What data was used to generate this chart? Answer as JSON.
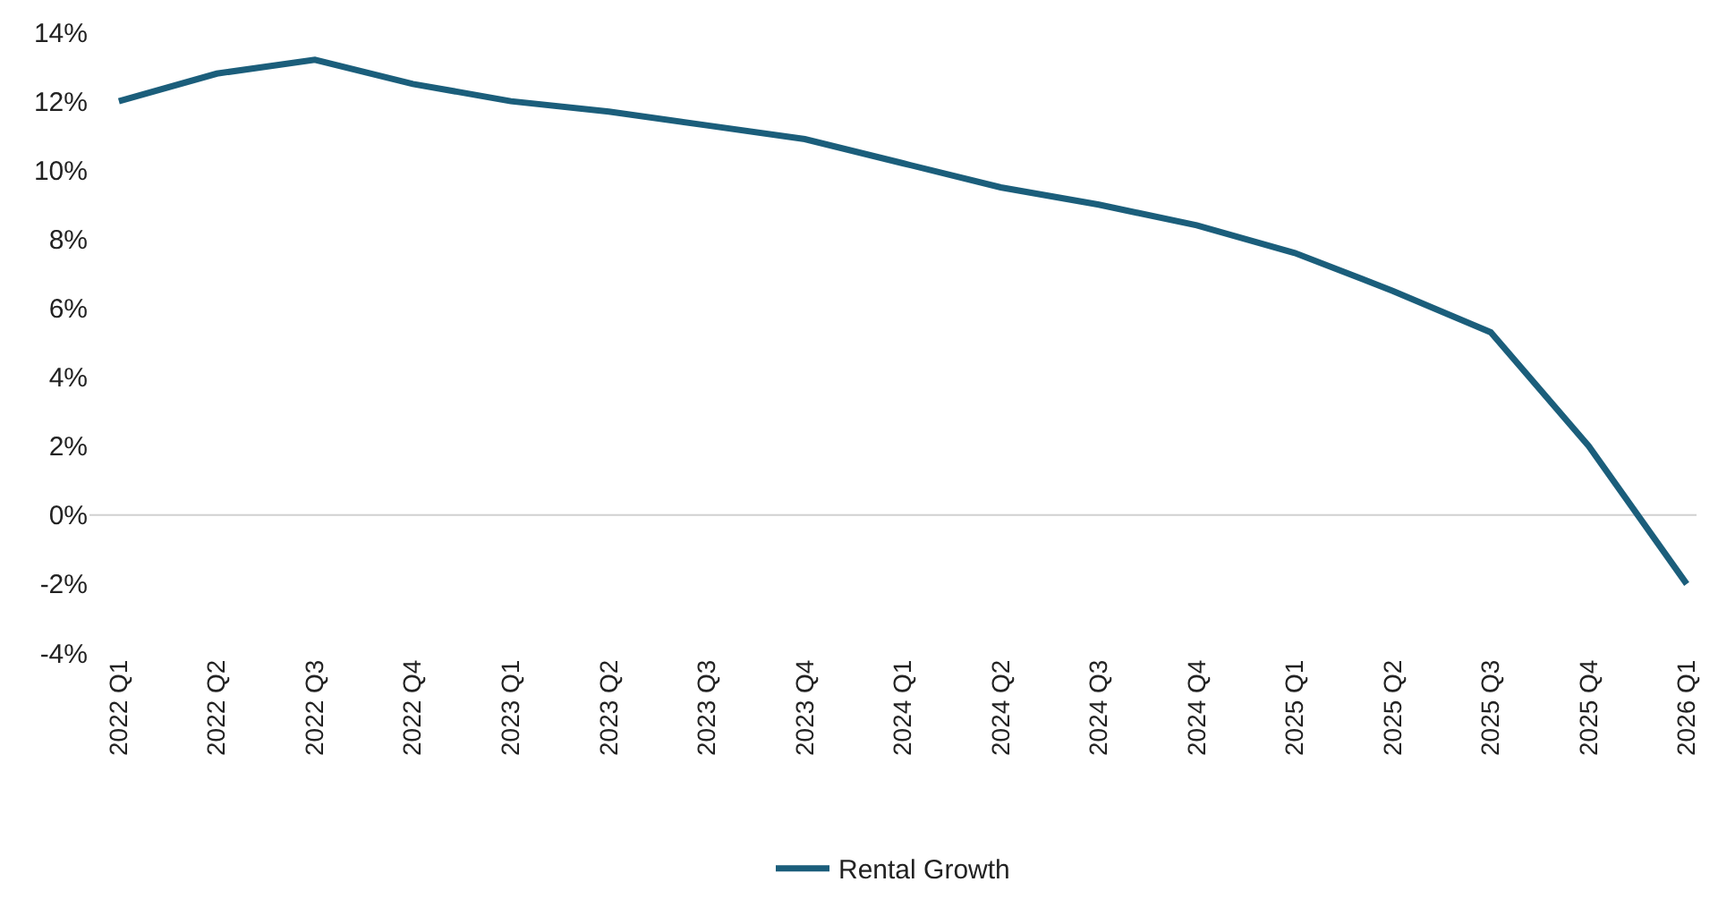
{
  "chart_data": {
    "type": "line",
    "categories": [
      "2022 Q1",
      "2022 Q2",
      "2022 Q3",
      "2022 Q4",
      "2023 Q1",
      "2023 Q2",
      "2023 Q3",
      "2023 Q4",
      "2024 Q1",
      "2024 Q2",
      "2024 Q3",
      "2024 Q4",
      "2025 Q1",
      "2025 Q2",
      "2025 Q3",
      "2025 Q4",
      "2026 Q1"
    ],
    "series": [
      {
        "name": "Rental Growth",
        "color": "#1b5e7b",
        "values": [
          12.0,
          12.8,
          13.2,
          12.5,
          12.0,
          11.7,
          11.3,
          10.9,
          10.2,
          9.5,
          9.0,
          8.4,
          7.6,
          6.5,
          5.3,
          2.0,
          -2.0
        ]
      }
    ],
    "ylim": [
      -4,
      14
    ],
    "yticks": [
      {
        "value": -4,
        "label": "-4%"
      },
      {
        "value": -2,
        "label": "-2%"
      },
      {
        "value": 0,
        "label": "0%"
      },
      {
        "value": 2,
        "label": "2%"
      },
      {
        "value": 4,
        "label": "4%"
      },
      {
        "value": 6,
        "label": "6%"
      },
      {
        "value": 8,
        "label": "8%"
      },
      {
        "value": 10,
        "label": "10%"
      },
      {
        "value": 12,
        "label": "12%"
      },
      {
        "value": 14,
        "label": "14%"
      }
    ],
    "ref_lines": [
      {
        "axis": "y",
        "value": 0,
        "color": "#d0d0d0"
      }
    ],
    "grid": false,
    "legend": "bottom",
    "marker": "none",
    "line_style": "solid"
  }
}
